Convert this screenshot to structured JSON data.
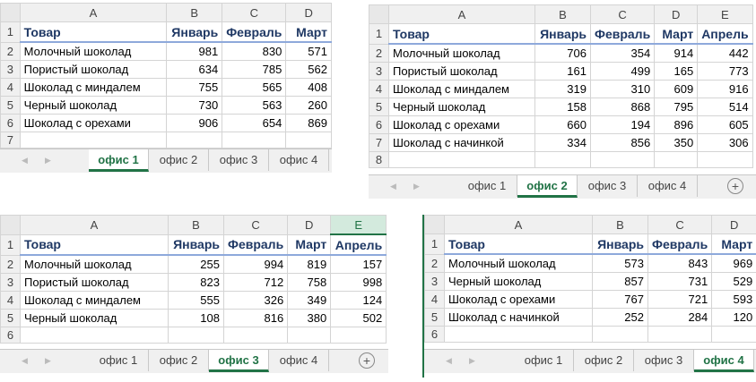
{
  "panels": [
    {
      "cols": [
        "A",
        "B",
        "C",
        "D"
      ],
      "header": [
        "Товар",
        "Январь",
        "Февраль",
        "Март"
      ],
      "rows": [
        [
          "Молочный шоколад",
          "981",
          "830",
          "571"
        ],
        [
          "Пористый шоколад",
          "634",
          "785",
          "562"
        ],
        [
          "Шоколад с миндалем",
          "755",
          "565",
          "408"
        ],
        [
          "Черный шоколад",
          "730",
          "563",
          "260"
        ],
        [
          "Шоколад с орехами",
          "906",
          "654",
          "869"
        ]
      ],
      "empty_rows": [
        "7"
      ],
      "row_numbers": [
        "1",
        "2",
        "3",
        "4",
        "5",
        "6"
      ],
      "tabs": [
        "офис 1",
        "офис 2",
        "офис 3",
        "офис 4"
      ],
      "active_tab": 0
    },
    {
      "cols": [
        "A",
        "B",
        "C",
        "D",
        "E"
      ],
      "header": [
        "Товар",
        "Январь",
        "Февраль",
        "Март",
        "Апрель"
      ],
      "rows": [
        [
          "Молочный шоколад",
          "706",
          "354",
          "914",
          "442"
        ],
        [
          "Пористый шоколад",
          "161",
          "499",
          "165",
          "773"
        ],
        [
          "Шоколад с миндалем",
          "319",
          "310",
          "609",
          "916"
        ],
        [
          "Черный шоколад",
          "158",
          "868",
          "795",
          "514"
        ],
        [
          "Шоколад с орехами",
          "660",
          "194",
          "896",
          "605"
        ],
        [
          "Шоколад с начинкой",
          "334",
          "856",
          "350",
          "306"
        ]
      ],
      "empty_rows": [
        "8"
      ],
      "row_numbers": [
        "1",
        "2",
        "3",
        "4",
        "5",
        "6",
        "7"
      ],
      "tabs": [
        "офис 1",
        "офис 2",
        "офис 3",
        "офис 4"
      ],
      "active_tab": 1
    },
    {
      "cols": [
        "A",
        "B",
        "C",
        "D",
        "E"
      ],
      "header": [
        "Товар",
        "Январь",
        "Февраль",
        "Март",
        "Апрель"
      ],
      "rows": [
        [
          "Молочный шоколад",
          "255",
          "994",
          "819",
          "157"
        ],
        [
          "Пористый шоколад",
          "823",
          "712",
          "758",
          "998"
        ],
        [
          "Шоколад с миндалем",
          "555",
          "326",
          "349",
          "124"
        ],
        [
          "Черный шоколад",
          "108",
          "816",
          "380",
          "502"
        ]
      ],
      "empty_rows": [
        "6"
      ],
      "row_numbers": [
        "1",
        "2",
        "3",
        "4",
        "5"
      ],
      "tabs": [
        "офис 1",
        "офис 2",
        "офис 3",
        "офис 4"
      ],
      "active_tab": 2
    },
    {
      "cols": [
        "A",
        "B",
        "C",
        "D"
      ],
      "header": [
        "Товар",
        "Январь",
        "Февраль",
        "Март"
      ],
      "rows": [
        [
          "Молочный шоколад",
          "573",
          "843",
          "969"
        ],
        [
          "Черный шоколад",
          "857",
          "731",
          "529"
        ],
        [
          "Шоколад с орехами",
          "767",
          "721",
          "593"
        ],
        [
          "Шоколад с начинкой",
          "252",
          "284",
          "120"
        ]
      ],
      "empty_rows": [
        "6"
      ],
      "row_numbers": [
        "1",
        "2",
        "3",
        "4",
        "5"
      ],
      "tabs": [
        "офис 1",
        "офис 2",
        "офис 3",
        "офис 4"
      ],
      "active_tab": 3
    }
  ],
  "icons": {
    "nav_prev": "◀",
    "nav_next": "▶",
    "add_sheet": "+"
  }
}
